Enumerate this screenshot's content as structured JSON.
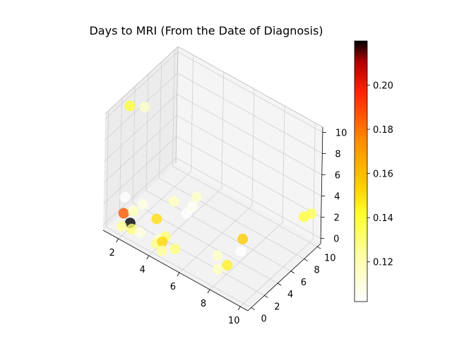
{
  "chart_data": {
    "type": "scatter3d",
    "title": "Days to MRI (From the Date of Diagnosis)",
    "xlabel": "",
    "ylabel": "",
    "zlabel": "",
    "x_ticks": [
      "2",
      "4",
      "6",
      "8",
      "10"
    ],
    "y_ticks": [
      "0",
      "2",
      "4",
      "6",
      "8",
      "10"
    ],
    "z_ticks": [
      "0",
      "2",
      "4",
      "6",
      "8",
      "10"
    ],
    "xlim": [
      1,
      10.5
    ],
    "ylim": [
      -0.5,
      10.5
    ],
    "zlim": [
      -0.5,
      10.5
    ],
    "colorbar": {
      "colormap": "hot_r",
      "range": [
        0.102,
        0.22
      ],
      "ticks": [
        "0.12",
        "0.14",
        "0.16",
        "0.18",
        "0.20"
      ],
      "tick_values": [
        0.12,
        0.14,
        0.16,
        0.18,
        0.2
      ]
    },
    "grid": true,
    "points": [
      {
        "x": 1.2,
        "y": 2.8,
        "z": 9.5,
        "c": 0.14
      },
      {
        "x": 2.0,
        "y": 3.2,
        "z": 9.8,
        "c": 0.115
      },
      {
        "x": 1.5,
        "y": 1.6,
        "z": 1.8,
        "c": 0.102
      },
      {
        "x": 1.6,
        "y": 1.2,
        "z": 0.6,
        "c": 0.186
      },
      {
        "x": 2.1,
        "y": 1.5,
        "z": 1.0,
        "c": 0.118
      },
      {
        "x": 2.4,
        "y": 2.2,
        "z": 1.5,
        "c": 0.11
      },
      {
        "x": 2.2,
        "y": 0.8,
        "z": 0.4,
        "c": 0.22
      },
      {
        "x": 1.9,
        "y": 0.2,
        "z": 0.2,
        "c": 0.125
      },
      {
        "x": 2.4,
        "y": 0.6,
        "z": 0.1,
        "c": 0.13
      },
      {
        "x": 2.9,
        "y": 0.7,
        "z": 0.1,
        "c": 0.11
      },
      {
        "x": 3.2,
        "y": 2.5,
        "z": 0.6,
        "c": 0.15
      },
      {
        "x": 3.4,
        "y": 4.6,
        "z": 1.2,
        "c": 0.118
      },
      {
        "x": 4.2,
        "y": 5.6,
        "z": 0.8,
        "c": 0.105
      },
      {
        "x": 4.0,
        "y": 6.7,
        "z": 0.9,
        "c": 0.115
      },
      {
        "x": 4.0,
        "y": 5.2,
        "z": 0.2,
        "c": 0.102
      },
      {
        "x": 4.2,
        "y": 1.5,
        "z": 0.3,
        "c": 0.132
      },
      {
        "x": 4.1,
        "y": 0.8,
        "z": 0.4,
        "c": 0.115
      },
      {
        "x": 4.1,
        "y": 0.4,
        "z": 0.2,
        "c": 0.128
      },
      {
        "x": 4.4,
        "y": 0.6,
        "z": 0.5,
        "c": 0.152
      },
      {
        "x": 5.1,
        "y": 0.9,
        "z": 0.2,
        "c": 0.13
      },
      {
        "x": 4.6,
        "y": 0.1,
        "z": 0.1,
        "c": 0.125
      },
      {
        "x": 7.8,
        "y": 4.9,
        "z": 1.0,
        "c": 0.155
      },
      {
        "x": 7.9,
        "y": 4.4,
        "z": 0.2,
        "c": 0.102
      },
      {
        "x": 7.4,
        "y": 2.0,
        "z": 0.8,
        "c": 0.115
      },
      {
        "x": 8.1,
        "y": 1.9,
        "z": 0.5,
        "c": 0.145
      },
      {
        "x": 7.7,
        "y": 1.4,
        "z": 0.1,
        "c": 0.118
      },
      {
        "x": 9.6,
        "y": 10.0,
        "z": 1.6,
        "c": 0.14
      },
      {
        "x": 9.9,
        "y": 10.4,
        "z": 1.9,
        "c": 0.135
      }
    ]
  }
}
